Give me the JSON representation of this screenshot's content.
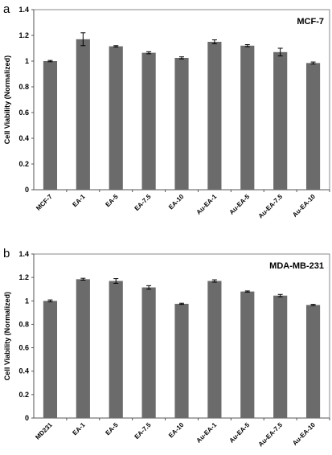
{
  "chart_data": [
    {
      "panel": "a",
      "type": "bar",
      "title": "MCF-7",
      "xlabel": "",
      "ylabel": "Cell Viability (Normalized)",
      "ylim": [
        0,
        1.4
      ],
      "yticks": [
        "0",
        "0.2",
        "0.4",
        "0.6",
        "0.8",
        "1",
        "1.2",
        "1.4"
      ],
      "grid": false,
      "categories": [
        "MCF-7",
        "EA-1",
        "EA-5",
        "EA-7.5",
        "EA-10",
        "Au-EA-1",
        "Au-EA-5",
        "Au-EA-7.5",
        "Au-EA-10"
      ],
      "values": [
        1.0,
        1.17,
        1.115,
        1.065,
        1.025,
        1.15,
        1.12,
        1.07,
        0.985
      ],
      "errors": [
        0.005,
        0.05,
        0.005,
        0.008,
        0.008,
        0.015,
        0.008,
        0.03,
        0.008
      ],
      "bar_color": "#6b6b6b"
    },
    {
      "panel": "b",
      "type": "bar",
      "title": "MDA-MB-231",
      "xlabel": "",
      "ylabel": "Cell Viability (Normalized)",
      "ylim": [
        0,
        1.4
      ],
      "yticks": [
        "0",
        "0.2",
        "0.4",
        "0.6",
        "0.8",
        "1",
        "1.2",
        "1.4"
      ],
      "grid": false,
      "categories": [
        "MD231",
        "EA-1",
        "EA-5",
        "EA-7.5",
        "EA-10",
        "Au-EA-1",
        "Au-EA-5",
        "Au-EA-7.5",
        "Au-EA-10"
      ],
      "values": [
        1.0,
        1.185,
        1.17,
        1.115,
        0.975,
        1.17,
        1.08,
        1.045,
        0.965
      ],
      "errors": [
        0.008,
        0.008,
        0.02,
        0.015,
        0.005,
        0.01,
        0.005,
        0.01,
        0.005
      ],
      "bar_color": "#6b6b6b"
    }
  ]
}
